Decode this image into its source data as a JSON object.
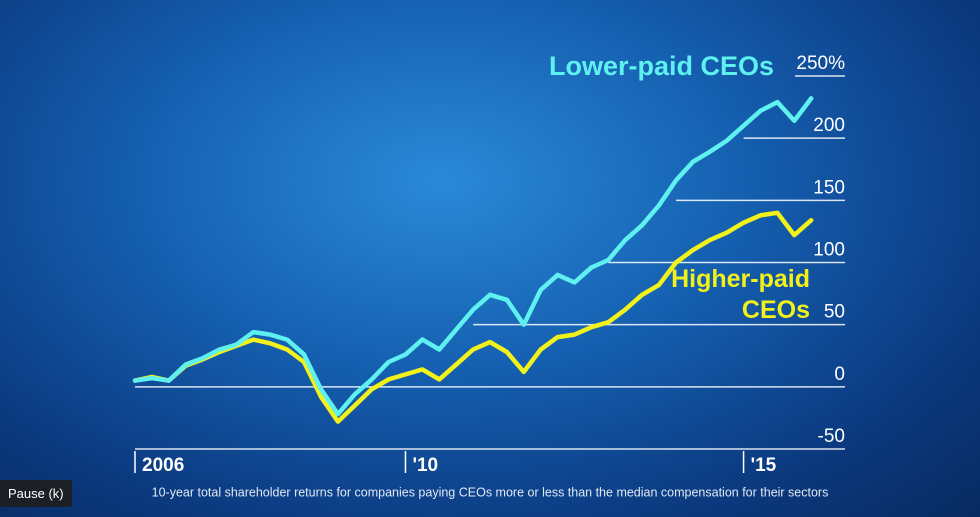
{
  "chart_data": {
    "type": "line",
    "x": [
      2006,
      2006.25,
      2006.5,
      2006.75,
      2007,
      2007.25,
      2007.5,
      2007.75,
      2008,
      2008.25,
      2008.5,
      2008.75,
      2009,
      2009.25,
      2009.5,
      2009.75,
      2010,
      2010.25,
      2010.5,
      2010.75,
      2011,
      2011.25,
      2011.5,
      2011.75,
      2012,
      2012.25,
      2012.5,
      2012.75,
      2013,
      2013.25,
      2013.5,
      2013.75,
      2014,
      2014.25,
      2014.5,
      2014.75,
      2015,
      2015.25,
      2015.5,
      2015.75,
      2016
    ],
    "series": [
      {
        "name": "Lower-paid CEOs",
        "color": "#5ff0f0",
        "values": [
          5,
          7,
          5,
          18,
          23,
          30,
          34,
          44,
          42,
          38,
          26,
          -2,
          -22,
          -6,
          6,
          20,
          26,
          38,
          30,
          46,
          62,
          74,
          70,
          50,
          78,
          90,
          84,
          96,
          102,
          118,
          130,
          146,
          166,
          181,
          189,
          198,
          210,
          222,
          229,
          214,
          232
        ]
      },
      {
        "name": "Higher-paid CEOs",
        "color": "#f2f21a",
        "values": [
          5,
          8,
          5,
          17,
          22,
          28,
          33,
          38,
          35,
          30,
          20,
          -8,
          -28,
          -15,
          -2,
          6,
          10,
          14,
          6,
          18,
          30,
          36,
          28,
          12,
          30,
          40,
          42,
          48,
          52,
          62,
          74,
          82,
          100,
          110,
          118,
          124,
          132,
          138,
          140,
          122,
          134
        ]
      }
    ],
    "xlim": [
      2006,
      2016.5
    ],
    "xticks": [
      2006,
      {
        "value": 2010,
        "label": "'10"
      },
      {
        "value": 2015,
        "label": "'15"
      }
    ],
    "ylim": [
      -50,
      250
    ],
    "yticks": [
      {
        "value": 250,
        "label": "250%"
      },
      200,
      150,
      100,
      50,
      0,
      -50
    ],
    "grid": true,
    "caption": "10-year total shareholder returns for companies paying CEOs more or less than the median compensation for their sectors"
  },
  "tooltip": "Pause (k)"
}
